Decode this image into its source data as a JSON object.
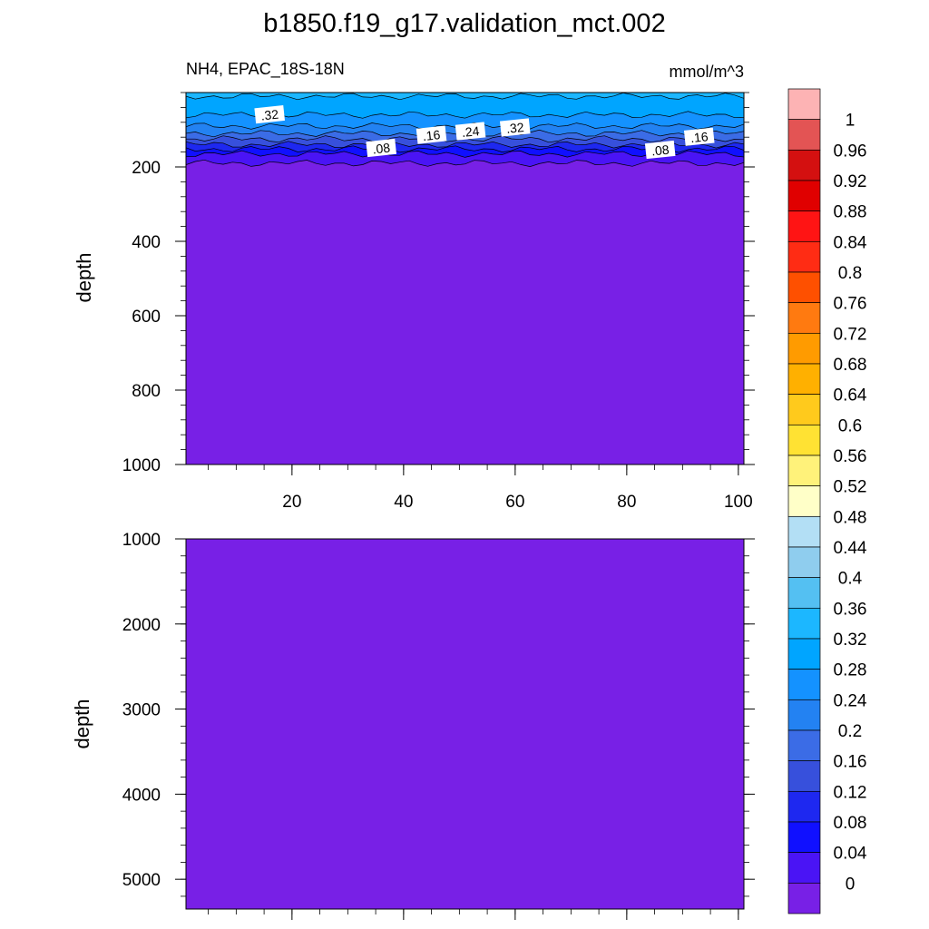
{
  "chart_data": {
    "type": "heatmap",
    "title": "b1850.f19_g17.validation_mct.002",
    "subtitle_left": "NH4, EPAC_18S-18N",
    "units": "mmol/m^3",
    "colorbar": {
      "labels": [
        "1",
        "0.96",
        "0.92",
        "0.88",
        "0.84",
        "0.8",
        "0.76",
        "0.72",
        "0.68",
        "0.64",
        "0.6",
        "0.56",
        "0.52",
        "0.48",
        "0.44",
        "0.4",
        "0.36",
        "0.32",
        "0.28",
        "0.24",
        "0.2",
        "0.16",
        "0.12",
        "0.08",
        "0.04",
        "0"
      ],
      "colors": [
        "#fdb3b4",
        "#e35454",
        "#d41010",
        "#e00000",
        "#ff1414",
        "#ff2c14",
        "#fe5000",
        "#ff7a10",
        "#ff9b00",
        "#ffb000",
        "#ffca1c",
        "#ffe233",
        "#fff27a",
        "#ffffc8",
        "#b3dff5",
        "#8fcdee",
        "#54c0f2",
        "#1cb7ff",
        "#00a5ff",
        "#1492ff",
        "#2382f2",
        "#3b6ce6",
        "#3750dc",
        "#1e28f0",
        "#1010ff",
        "#4a14f5",
        "#7820e6"
      ]
    },
    "panels": [
      {
        "name": "upper",
        "ylabel": "depth",
        "xlim": [
          1,
          101
        ],
        "ylim": [
          1000,
          0
        ],
        "yticks": [
          200,
          400,
          600,
          800,
          1000
        ],
        "xticks": [
          20,
          40,
          60,
          80,
          100
        ],
        "fill_value": 0.02,
        "surface_layer": {
          "depth_range": [
            0,
            200
          ],
          "value_profile": [
            {
              "depth": 10,
              "value": 0.36
            },
            {
              "depth": 60,
              "value": 0.32
            },
            {
              "depth": 90,
              "value": 0.28
            },
            {
              "depth": 110,
              "value": 0.24
            },
            {
              "depth": 125,
              "value": 0.2
            },
            {
              "depth": 140,
              "value": 0.16
            },
            {
              "depth": 152,
              "value": 0.12
            },
            {
              "depth": 165,
              "value": 0.08
            },
            {
              "depth": 190,
              "value": 0.04
            }
          ]
        },
        "contour_labels": [
          {
            "text": ".32",
            "x": 16,
            "depth": 60
          },
          {
            "text": ".08",
            "x": 36,
            "depth": 150
          },
          {
            "text": ".16",
            "x": 45,
            "depth": 115
          },
          {
            "text": ".24",
            "x": 52,
            "depth": 105
          },
          {
            "text": ".32",
            "x": 60,
            "depth": 95
          },
          {
            "text": ".08",
            "x": 86,
            "depth": 155
          },
          {
            "text": ".16",
            "x": 93,
            "depth": 120
          }
        ]
      },
      {
        "name": "lower",
        "ylabel": "depth",
        "xlim": [
          1,
          101
        ],
        "ylim": [
          5350,
          1000
        ],
        "yticks": [
          1000,
          2000,
          3000,
          4000,
          5000
        ],
        "xticks": [
          20,
          40,
          60,
          80,
          100
        ],
        "fill_value": 0.02
      }
    ]
  }
}
